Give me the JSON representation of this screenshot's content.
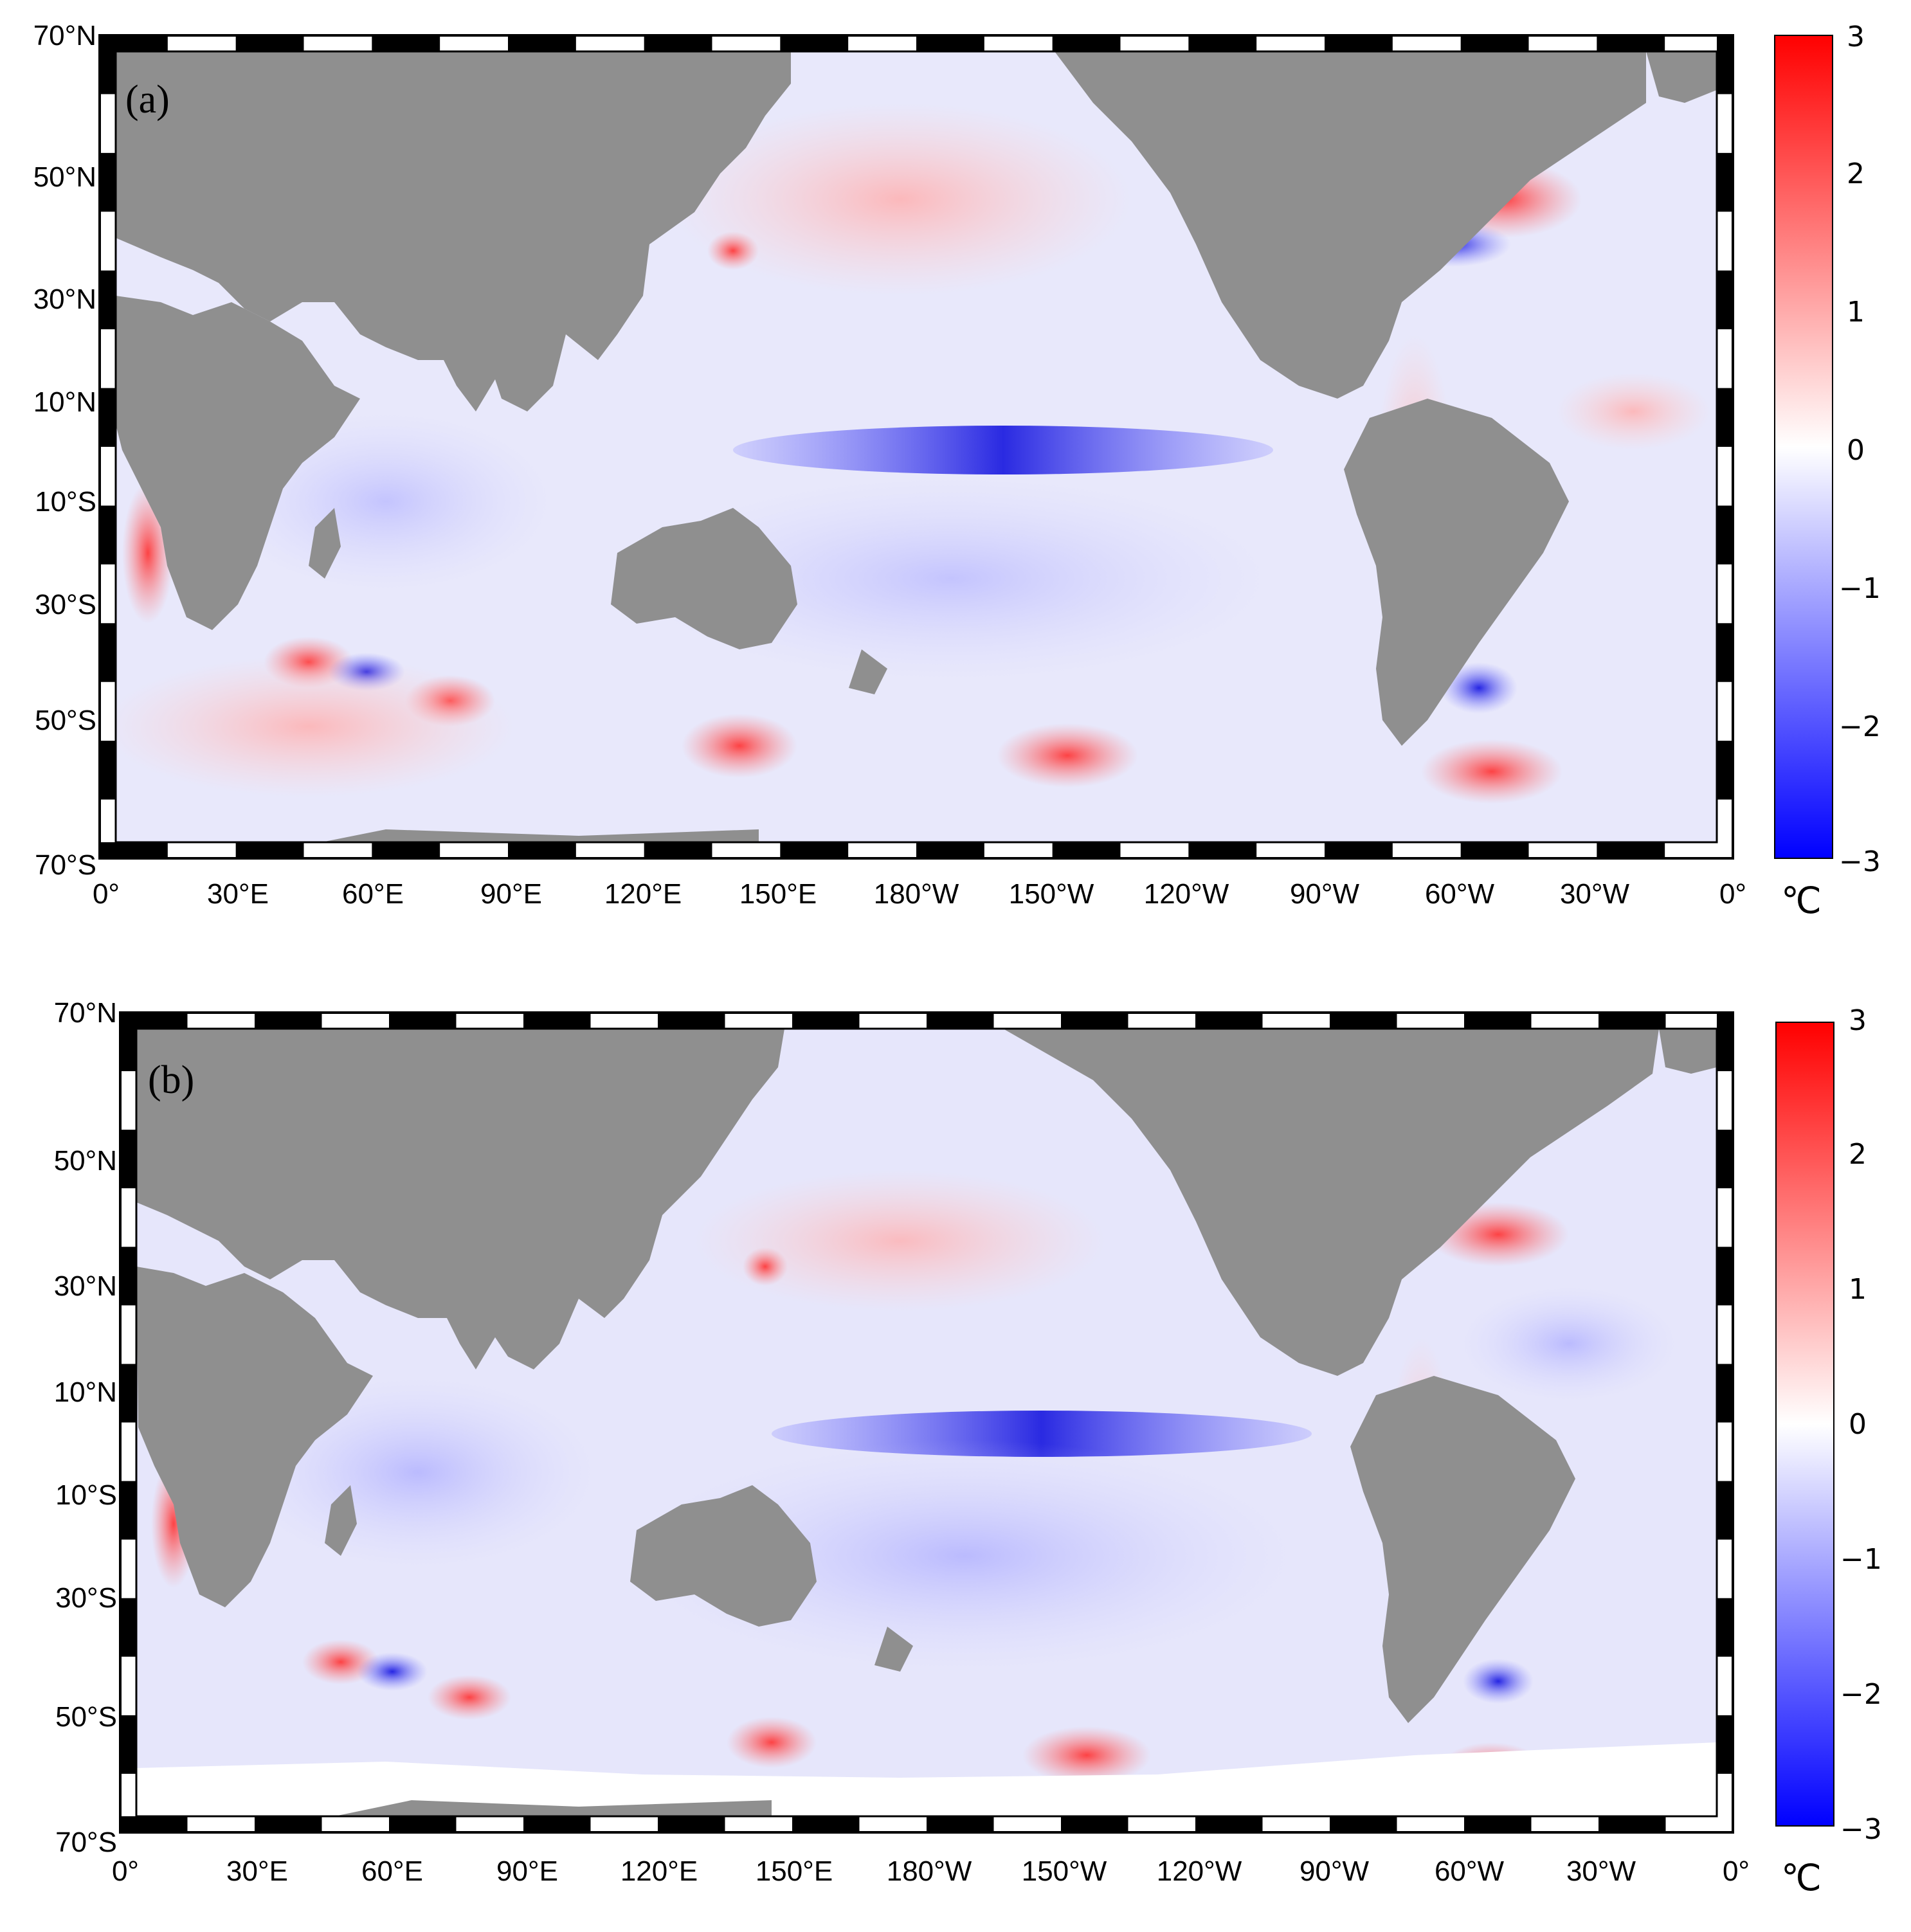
{
  "panels": [
    {
      "id": "a",
      "label": "(a)",
      "lat_ticks": [
        "70°N",
        "50°N",
        "30°N",
        "10°N",
        "10°S",
        "30°S",
        "50°S",
        "70°S"
      ],
      "lon_ticks": [
        "0°",
        "30°E",
        "60°E",
        "90°E",
        "120°E",
        "150°E",
        "180°W",
        "150°W",
        "120°W",
        "90°W",
        "60°W",
        "30°W",
        "0°"
      ],
      "colorbar": {
        "ticks": [
          "3",
          "2",
          "1",
          "0",
          "−1",
          "−2",
          "−3"
        ],
        "unit": "℃",
        "min": -3,
        "max": 3
      }
    },
    {
      "id": "b",
      "label": "(b)",
      "lat_ticks": [
        "70°N",
        "50°N",
        "30°N",
        "10°N",
        "10°S",
        "30°S",
        "50°S",
        "70°S"
      ],
      "lon_ticks": [
        "0°",
        "30°E",
        "60°E",
        "90°E",
        "120°E",
        "150°E",
        "180°W",
        "150°W",
        "120°W",
        "90°W",
        "60°W",
        "30°W",
        "0°"
      ],
      "colorbar": {
        "ticks": [
          "3",
          "2",
          "1",
          "0",
          "−1",
          "−2",
          "−3"
        ],
        "unit": "℃",
        "min": -3,
        "max": 3
      }
    }
  ],
  "colors": {
    "land": "#8f8f8f",
    "warm": "#ff1a1a",
    "cold": "#1a1aff",
    "neutral": "#ffffff"
  }
}
